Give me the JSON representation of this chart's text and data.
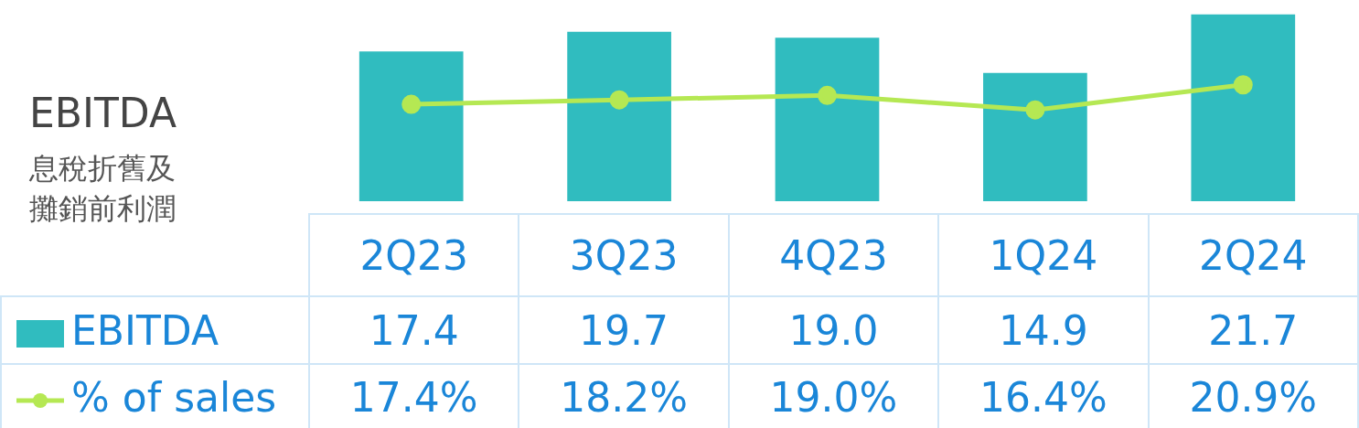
{
  "chart_data": {
    "type": "bar",
    "title": "EBITDA",
    "subtitle": "息稅折舊及攤銷前利潤",
    "categories": [
      "2Q23",
      "3Q23",
      "4Q23",
      "1Q24",
      "2Q24"
    ],
    "series": [
      {
        "name": "EBITDA",
        "color": "#30bcbf",
        "values": [
          17.4,
          19.7,
          19.0,
          14.9,
          21.7
        ],
        "value_labels": [
          "17.4",
          "19.7",
          "19.0",
          "14.9",
          "21.7"
        ]
      },
      {
        "name": "% of sales",
        "type": "line",
        "axis": "y2",
        "color": "#b5e853",
        "marker": "circle",
        "values": [
          17.4,
          18.2,
          19.0,
          16.4,
          20.9
        ],
        "value_labels": [
          "17.4%",
          "18.2%",
          "19.0%",
          "16.4%",
          "20.9%"
        ]
      }
    ],
    "ylim": [
      0,
      22
    ],
    "y2lim": [
      0,
      34
    ],
    "legend": "bottom left"
  }
}
